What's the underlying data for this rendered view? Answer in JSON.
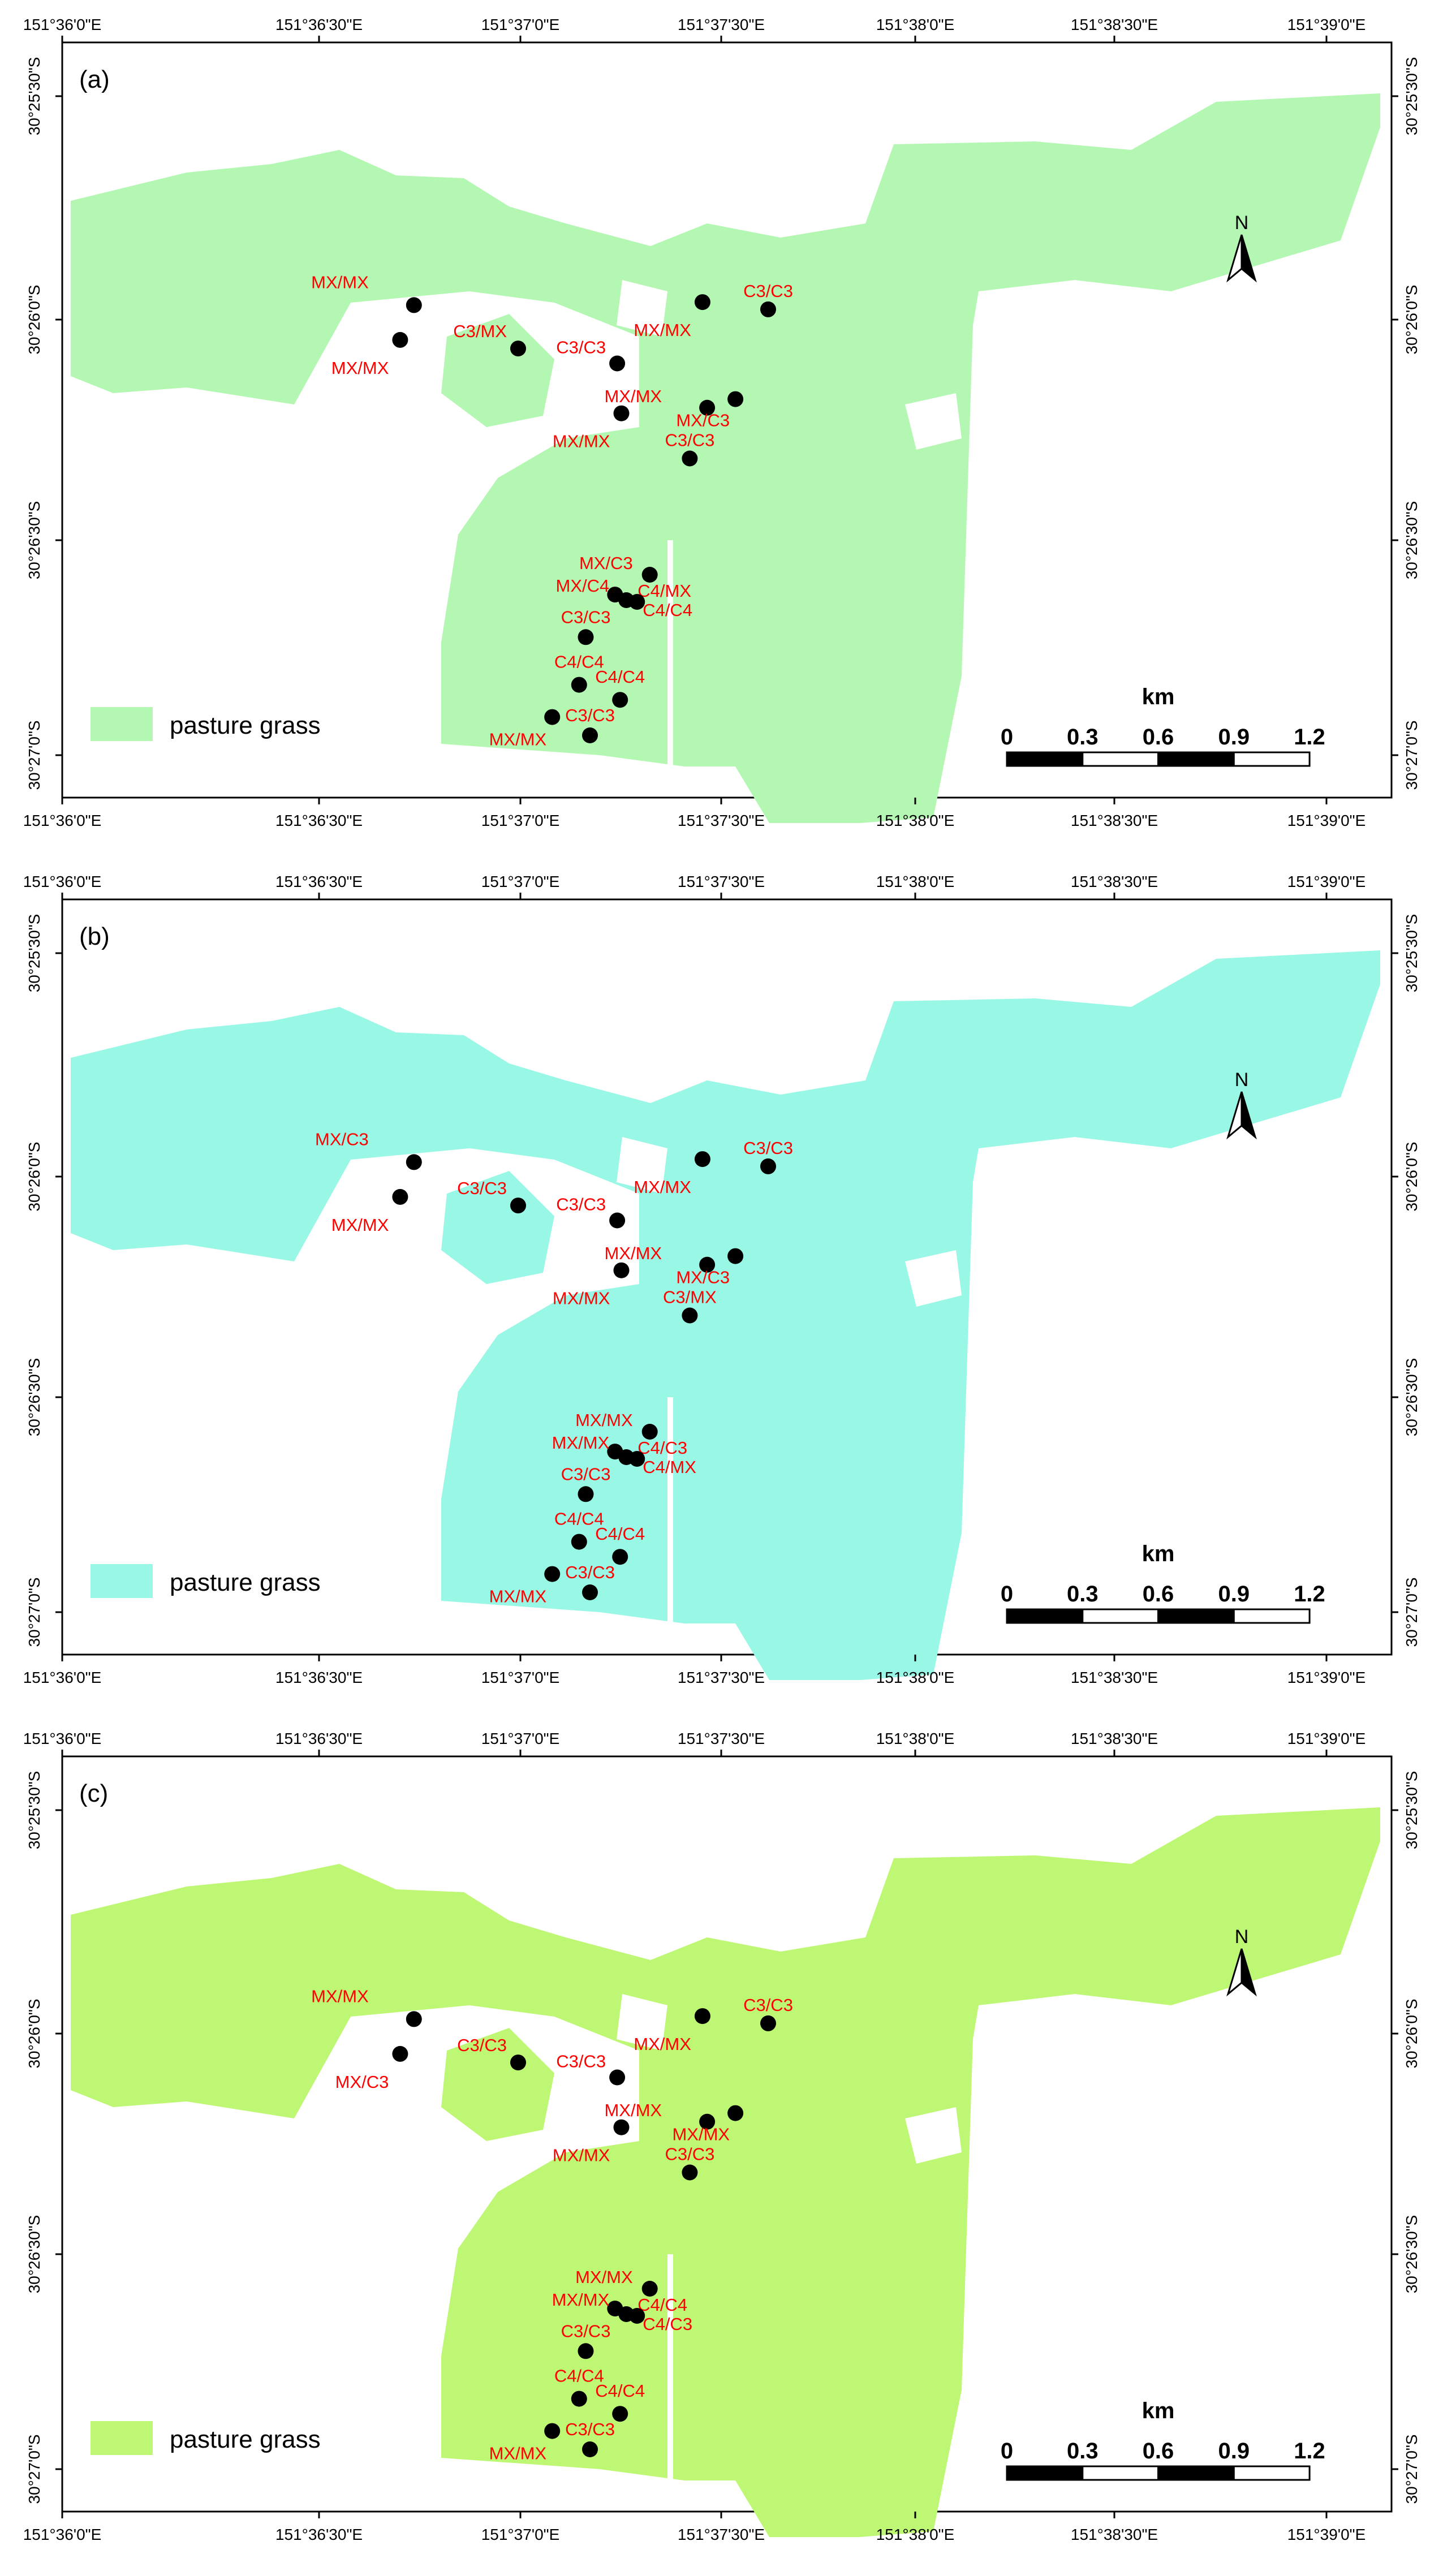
{
  "lon_labels": [
    "151°36'0\"E",
    "151°36'30\"E",
    "151°37'0\"E",
    "151°37'30\"E",
    "151°38'0\"E",
    "151°38'30\"E",
    "151°39'0\"E"
  ],
  "lat_labels": [
    "30°25'30\"S",
    "30°26'0\"S",
    "30°26'30\"S",
    "30°27'0\"S"
  ],
  "legend_label": "pasture grass",
  "north_label": "N",
  "scale": {
    "unit": "km",
    "ticks": [
      "0",
      "0.3",
      "0.6",
      "0.9",
      "1.2"
    ]
  },
  "sites": [
    {
      "lon": 0.1924,
      "lat": 0.1994
    },
    {
      "lon": 0.1721,
      "lat": 0.2641
    },
    {
      "lon": 0.3452,
      "lat": 0.2801
    },
    {
      "lon": 0.4905,
      "lat": 0.3079
    },
    {
      "lon": 0.4967,
      "lat": 0.4007
    },
    {
      "lon": 0.6157,
      "lat": 0.1938
    },
    {
      "lon": 0.712,
      "lat": 0.2073
    },
    {
      "lon": 0.6225,
      "lat": 0.3903
    },
    {
      "lon": 0.664,
      "lat": 0.3743
    },
    {
      "lon": 0.597,
      "lat": 0.4847
    },
    {
      "lon": 0.5383,
      "lat": 0.7011
    },
    {
      "lon": 0.4874,
      "lat": 0.738
    },
    {
      "lon": 0.504,
      "lat": 0.7484
    },
    {
      "lon": 0.5197,
      "lat": 0.7516
    },
    {
      "lon": 0.4444,
      "lat": 0.8172
    },
    {
      "lon": 0.4347,
      "lat": 0.9059
    },
    {
      "lon": 0.4948,
      "lat": 0.9339
    },
    {
      "lon": 0.3952,
      "lat": 0.9659
    },
    {
      "lon": 0.4506,
      "lat": 1.0
    }
  ],
  "panels": [
    {
      "label": "(a)",
      "fill": "#b3f7b3",
      "labels": [
        "MX/MX",
        "MX/MX",
        "C3/MX",
        "C3/C3",
        "MX/MX",
        "MX/MX",
        "C3/C3",
        "MX/MX",
        "MX/C3",
        "C3/C3",
        "MX/C3",
        "MX/C4",
        "C4/MX",
        "C4/C4",
        "C3/C3",
        "C4/C4",
        "C4/C4",
        "MX/MX",
        "C3/C3"
      ]
    },
    {
      "label": "(b)",
      "fill": "#99f7e6",
      "labels": [
        "MX/C3",
        "MX/MX",
        "C3/C3",
        "C3/C3",
        "MX/MX",
        "MX/MX",
        "C3/C3",
        "MX/MX",
        "MX/C3",
        "C3/MX",
        "MX/MX",
        "MX/MX",
        "C4/C3",
        "C4/MX",
        "C3/C3",
        "C4/C4",
        "C4/C4",
        "MX/MX",
        "C3/C3"
      ]
    },
    {
      "label": "(c)",
      "fill": "#bef773",
      "labels": [
        "MX/MX",
        "MX/C3",
        "C3/C3",
        "C3/C3",
        "MX/MX",
        "MX/MX",
        "C3/C3",
        "MX/MX",
        "MX/MX",
        "C3/C3",
        "MX/MX",
        "MX/MX",
        "C4/C4",
        "C4/C3",
        "C3/C3",
        "C4/C4",
        "C4/C4",
        "MX/MX",
        "C3/C3"
      ]
    }
  ]
}
